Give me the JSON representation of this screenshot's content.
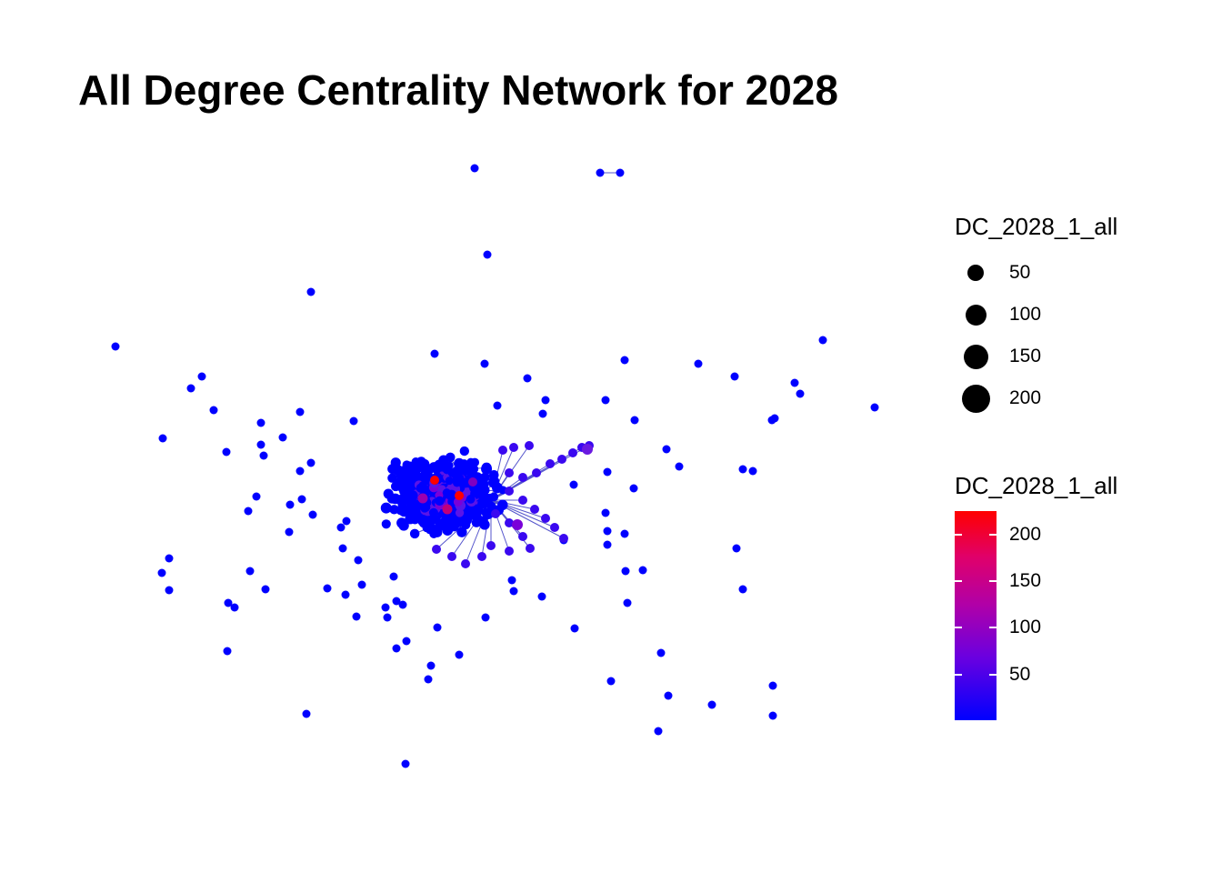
{
  "plot": {
    "title": "All Degree Centrality Network for 2028"
  },
  "legend": {
    "size_title": "DC_2028_1_all",
    "size_items": [
      {
        "label": "50",
        "value": 50
      },
      {
        "label": "100",
        "value": 100
      },
      {
        "label": "150",
        "value": 150
      },
      {
        "label": "200",
        "value": 200
      }
    ],
    "color_title": "DC_2028_1_all",
    "color_ticks": [
      {
        "label": "200",
        "value": 200
      },
      {
        "label": "150",
        "value": 150
      },
      {
        "label": "100",
        "value": 100
      },
      {
        "label": "50",
        "value": 50
      }
    ],
    "color_range": [
      1,
      225
    ],
    "color_low": "#0000ff",
    "color_high": "#ff0000"
  },
  "colors": {
    "node_low": "#0000ff",
    "node_mid": "#7a00d8",
    "node_high": "#ff0000",
    "edge": "#5555cc"
  }
}
